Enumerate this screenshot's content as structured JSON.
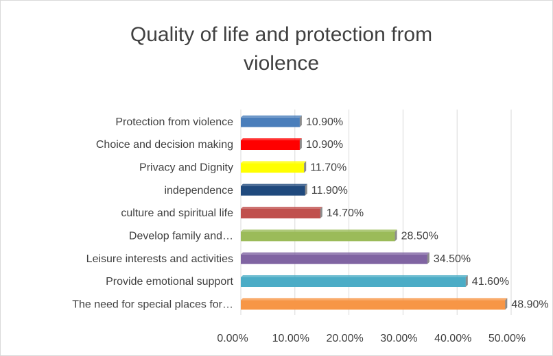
{
  "chart_data": {
    "type": "bar",
    "orientation": "horizontal",
    "title": "Quality of life and protection from violence",
    "categories": [
      "Protection from violence",
      "Choice and decision making",
      "Privacy and Dignity",
      "independence",
      "culture and spiritual life",
      "Develop family and…",
      "Leisure interests and activities",
      "Provide emotional support",
      "The need for special places for…"
    ],
    "values": [
      10.9,
      10.9,
      11.7,
      11.9,
      14.7,
      28.5,
      34.5,
      41.6,
      48.9
    ],
    "value_labels": [
      "10.90%",
      "10.90%",
      "11.70%",
      "11.90%",
      "14.70%",
      "28.50%",
      "34.50%",
      "41.60%",
      "48.90%"
    ],
    "colors": [
      "#4a7ebb",
      "#ff0000",
      "#ffff00",
      "#1f497d",
      "#c0504d",
      "#9bbb59",
      "#8064a2",
      "#4bacc6",
      "#f79646"
    ],
    "xlim": [
      0,
      50
    ],
    "xticks": [
      {
        "value": 0,
        "label": "0.00%"
      },
      {
        "value": 10,
        "label": "10.00%"
      },
      {
        "value": 20,
        "label": "20.00%"
      },
      {
        "value": 30,
        "label": "30.00%"
      },
      {
        "value": 40,
        "label": "40.00%"
      },
      {
        "value": 50,
        "label": "50.00%"
      }
    ],
    "grid": true
  }
}
